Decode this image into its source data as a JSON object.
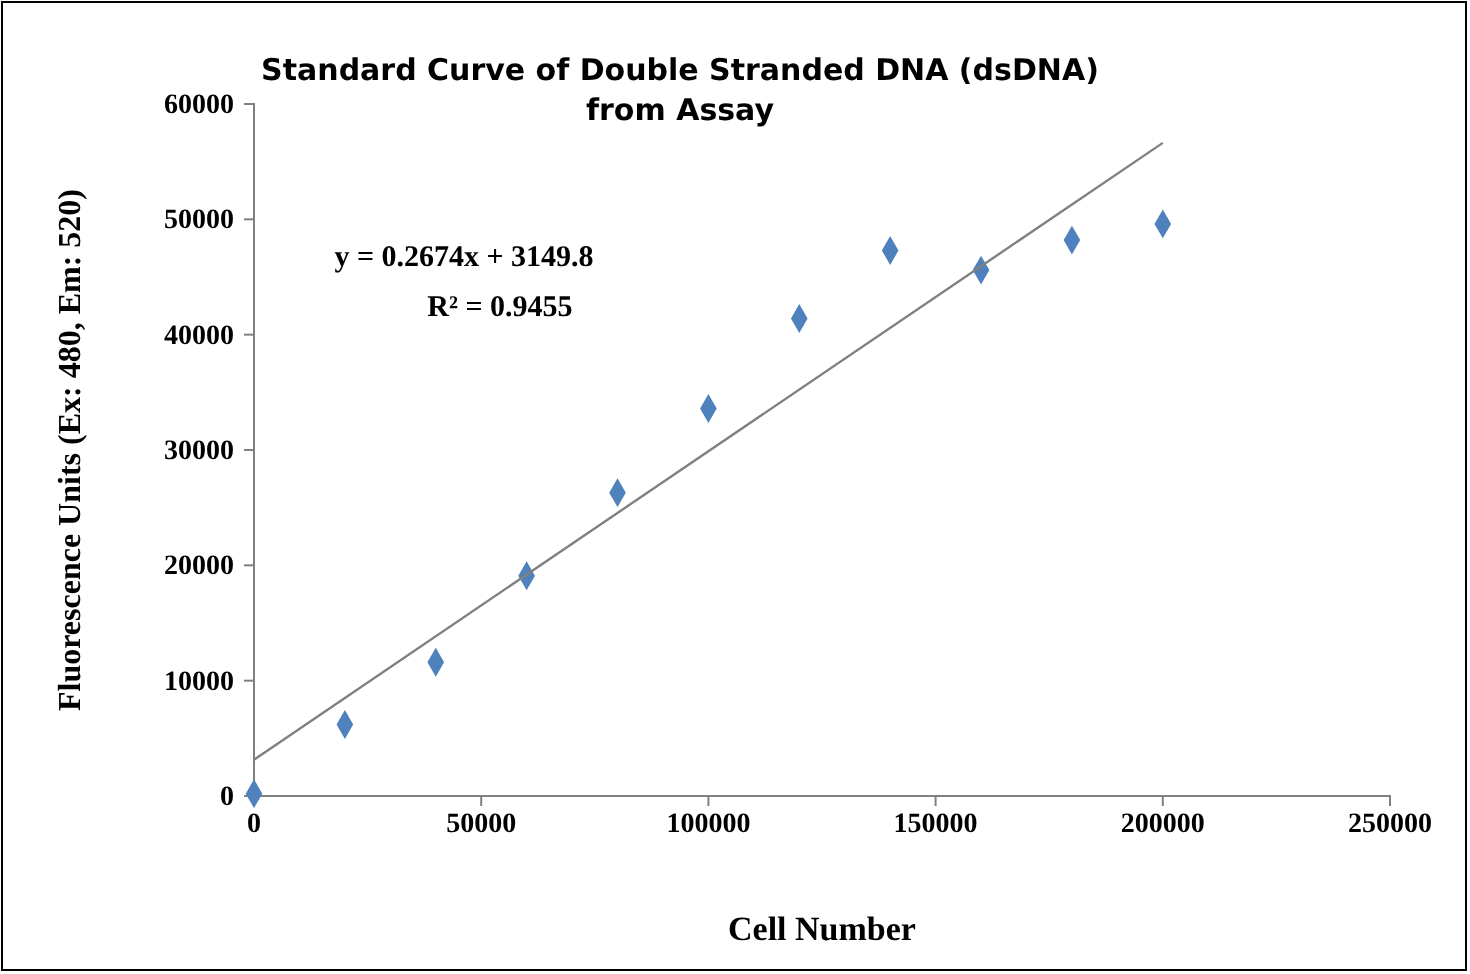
{
  "chart_data": {
    "type": "scatter",
    "title": "Standard Curve of Double Stranded DNA (dsDNA)\nfrom Assay",
    "xlabel": "Cell Number",
    "ylabel": "Fluorescence Units (Ex: 480, Em: 520)",
    "xlim": [
      0,
      250000
    ],
    "xticks": [
      0,
      50000,
      100000,
      150000,
      200000,
      250000
    ],
    "ylim": [
      0,
      60000
    ],
    "yticks": [
      0,
      10000,
      20000,
      30000,
      40000,
      50000,
      60000
    ],
    "grid": false,
    "annotations": [
      "y = 0.2674x + 3149.8",
      "R² = 0.9455"
    ],
    "series": [
      {
        "marker": "diamond",
        "color": "#4f81bd",
        "x": [
          0,
          20000,
          40000,
          60000,
          80000,
          100000,
          120000,
          140000,
          160000,
          180000,
          200000
        ],
        "values": [
          200,
          6200,
          11600,
          19100,
          26300,
          33600,
          41400,
          47300,
          45600,
          48200,
          49600
        ]
      },
      {
        "type": "line",
        "color": "#808080",
        "x": [
          0,
          200000
        ],
        "values": [
          3150,
          56630
        ]
      }
    ]
  }
}
